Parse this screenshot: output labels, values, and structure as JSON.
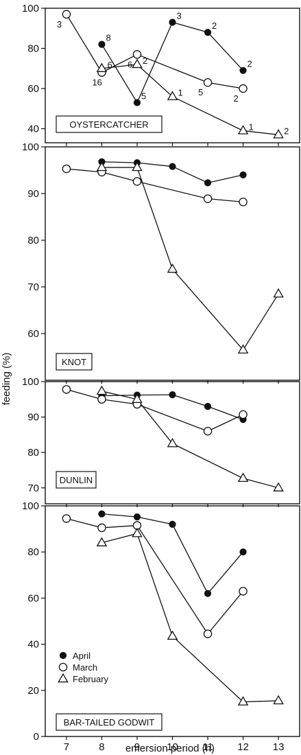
{
  "chart_data": {
    "type": "line",
    "xlabel": "emersion period (h)",
    "ylabel": "feeding (%)",
    "xlim": [
      6.4,
      13.6
    ],
    "x_ticks": [
      7,
      8,
      9,
      10,
      11,
      12,
      13
    ],
    "legend": {
      "placement": "bottom-left of last panel",
      "entries": [
        {
          "label": "April",
          "marker": "filled-circle"
        },
        {
          "label": "March",
          "marker": "open-circle"
        },
        {
          "label": "February",
          "marker": "open-triangle"
        }
      ]
    },
    "panels": [
      {
        "title": "OYSTERCATCHER",
        "ylim": [
          33,
          100
        ],
        "y_ticks": [
          40,
          60,
          80,
          100
        ],
        "series": [
          {
            "name": "April",
            "x": [
              8,
              9,
              10,
              11,
              12
            ],
            "y": [
              82,
              53,
              93,
              88,
              69
            ],
            "n": [
              "8",
              "5",
              "3",
              "2",
              "2"
            ]
          },
          {
            "name": "March",
            "x": [
              7,
              8,
              9,
              11,
              12
            ],
            "y": [
              97,
              68,
              77,
              63,
              60
            ],
            "n": [
              "3",
              "16",
              "6",
              "5",
              "2"
            ]
          },
          {
            "name": "February",
            "x": [
              8,
              9,
              10,
              12,
              13
            ],
            "y": [
              70,
              72,
              56,
              39,
              37
            ],
            "n": [
              "6",
              "2",
              "1",
              "1",
              "2"
            ]
          }
        ]
      },
      {
        "title": "KNOT",
        "ylim": [
          50,
          100
        ],
        "y_ticks": [
          60,
          70,
          80,
          90,
          100
        ],
        "series": [
          {
            "name": "April",
            "x": [
              8,
              9,
              10,
              11,
              12
            ],
            "y": [
              96.8,
              96.6,
              95.8,
              92.3,
              94
            ]
          },
          {
            "name": "March",
            "x": [
              7,
              8,
              9,
              11,
              12
            ],
            "y": [
              95.3,
              94.6,
              92.6,
              88.9,
              88.2
            ]
          },
          {
            "name": "February",
            "x": [
              8,
              9,
              10,
              12,
              13
            ],
            "y": [
              95.6,
              95.6,
              73.8,
              56.5,
              68.5
            ]
          }
        ]
      },
      {
        "title": "DUNLIN",
        "ylim": [
          65.5,
          100
        ],
        "y_ticks": [
          70,
          80,
          90,
          100
        ],
        "series": [
          {
            "name": "April",
            "x": [
              8,
              9,
              10,
              11,
              12
            ],
            "y": [
              96,
              96.2,
              96.3,
              93,
              89.3
            ]
          },
          {
            "name": "March",
            "x": [
              7,
              8,
              9,
              11,
              12
            ],
            "y": [
              97.8,
              95,
              93.6,
              86,
              90.7
            ]
          },
          {
            "name": "February",
            "x": [
              8,
              9,
              10,
              12,
              13
            ],
            "y": [
              97.3,
              95,
              82.5,
              72.7,
              70
            ]
          }
        ]
      },
      {
        "title": "BAR-TAILED GODWIT",
        "ylim": [
          0,
          100
        ],
        "y_ticks": [
          0,
          20,
          40,
          60,
          80,
          100
        ],
        "series": [
          {
            "name": "April",
            "x": [
              8,
              9,
              10,
              11,
              12
            ],
            "y": [
              96.5,
              95.2,
              92,
              62,
              80
            ]
          },
          {
            "name": "March",
            "x": [
              7,
              8,
              9,
              11,
              12
            ],
            "y": [
              94.5,
              90.5,
              91.5,
              44.5,
              63
            ]
          },
          {
            "name": "February",
            "x": [
              8,
              9,
              10,
              12,
              13
            ],
            "y": [
              84,
              88,
              43.5,
              15,
              15.5
            ]
          }
        ]
      }
    ]
  }
}
